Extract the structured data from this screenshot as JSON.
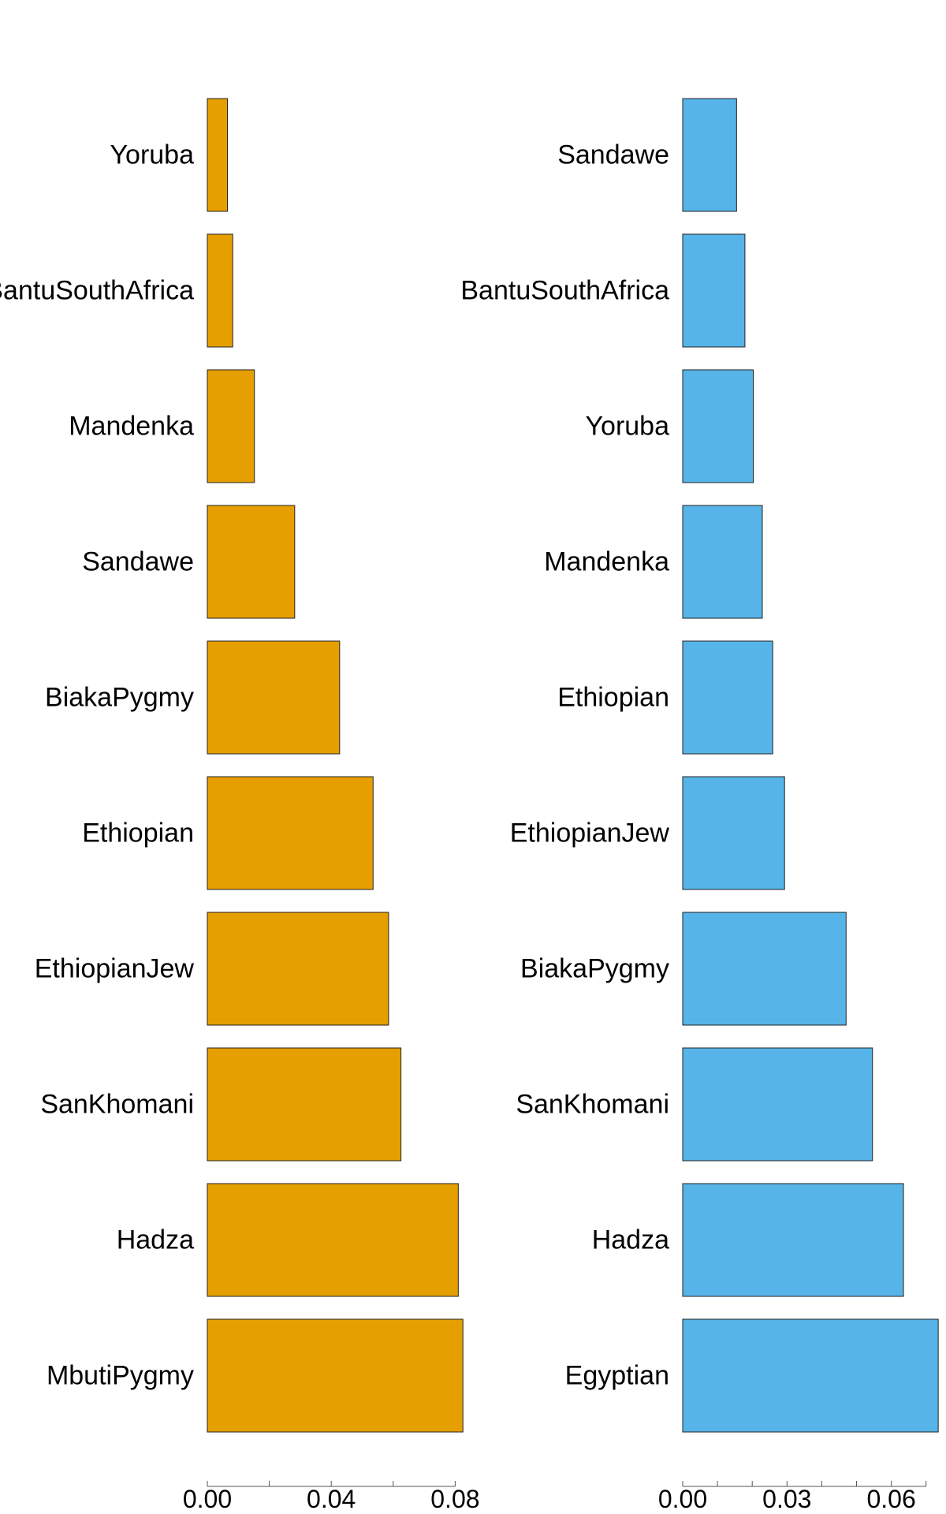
{
  "chart_data": [
    {
      "type": "bar",
      "orientation": "horizontal",
      "categories": [
        "Yoruba",
        "BantuSouthAfrica",
        "Mandenka",
        "Sandawe",
        "BiakaPygmy",
        "Ethiopian",
        "EthiopianJew",
        "SanKhomani",
        "Hadza",
        "MbutiPygmy"
      ],
      "values": [
        0.0065,
        0.0082,
        0.0152,
        0.0282,
        0.0427,
        0.0535,
        0.0585,
        0.0625,
        0.081,
        0.0825
      ],
      "color": "#E69F00",
      "xlim": [
        0,
        0.085
      ],
      "xticks": [
        0,
        0.02,
        0.04,
        0.06,
        0.08
      ],
      "xtick_labels": [
        "0.00",
        "",
        "0.04",
        "",
        "0.08"
      ],
      "title": "",
      "xlabel": "",
      "ylabel": ""
    },
    {
      "type": "bar",
      "orientation": "horizontal",
      "categories": [
        "Sandawe",
        "BantuSouthAfrica",
        "Yoruba",
        "Mandenka",
        "Ethiopian",
        "EthiopianJew",
        "BiakaPygmy",
        "SanKhomani",
        "Hadza",
        "Egyptian"
      ],
      "values": [
        0.0155,
        0.0179,
        0.0203,
        0.0229,
        0.0259,
        0.0293,
        0.047,
        0.0546,
        0.0635,
        0.0735
      ],
      "color": "#56B4E9",
      "xlim": [
        0,
        0.075
      ],
      "xticks": [
        0,
        0.01,
        0.02,
        0.03,
        0.04,
        0.05,
        0.06,
        0.07
      ],
      "xtick_labels": [
        "0.00",
        "",
        "",
        "0.03",
        "",
        "",
        "0.06",
        ""
      ],
      "title": "",
      "xlabel": "",
      "ylabel": ""
    }
  ]
}
